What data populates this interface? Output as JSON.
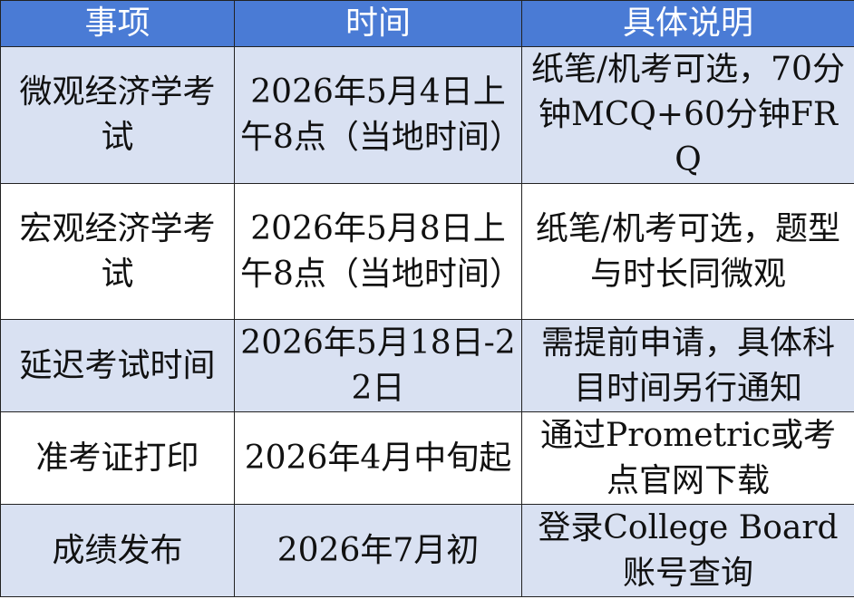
{
  "table": {
    "header": [
      "事项",
      "时间",
      "具体说明"
    ],
    "rows": [
      [
        "微观经济学考试",
        "2026年5月4日上午8点（当地时间）",
        "纸笔/机考可选，70分钟MCQ+60分钟FRQ"
      ],
      [
        "宏观经济学考试",
        "2026年5月8日上午8点（当地时间）",
        "纸笔/机考可选，题型与时长同微观"
      ],
      [
        "延迟考试时间",
        "2026年5月18日-22日",
        "需提前申请，具体科目时间另行通知"
      ],
      [
        "准考证打印",
        "2026年4月中旬起",
        "通过Prometric或考点官网下载"
      ],
      [
        "成绩发布",
        "2026年7月初",
        "登录College Board账号查询"
      ]
    ]
  }
}
